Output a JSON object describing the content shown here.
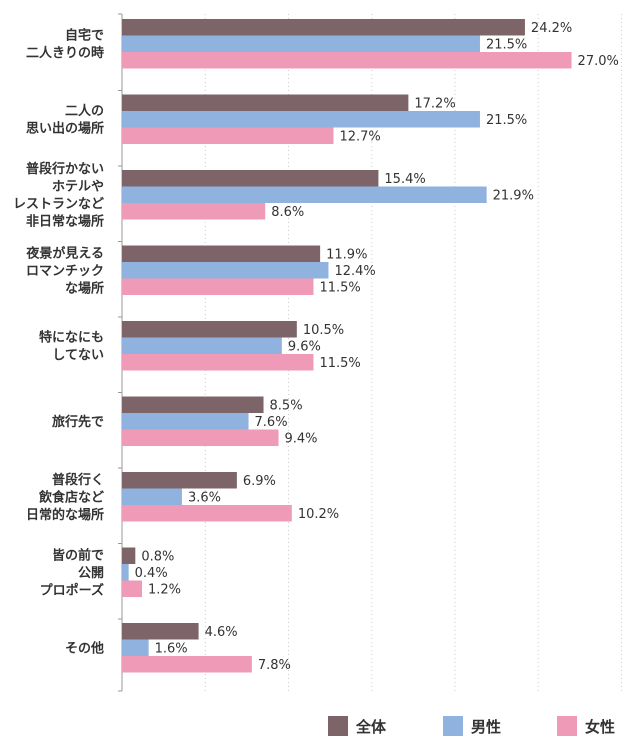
{
  "chart_data": {
    "type": "bar",
    "orientation": "horizontal",
    "categories": [
      [
        "自宅で",
        "二人きりの時"
      ],
      [
        "二人の",
        "思い出の場所"
      ],
      [
        "普段行かない",
        "ホテルや",
        "レストランなど",
        "非日常な場所"
      ],
      [
        "夜景が見える",
        "ロマンチック",
        "な場所"
      ],
      [
        "特になにも",
        "してない"
      ],
      [
        "旅行先で"
      ],
      [
        "普段行く",
        "飲食店など",
        "日常的な場所"
      ],
      [
        "皆の前で",
        "公開",
        "プロポーズ"
      ],
      [
        "その他"
      ]
    ],
    "series": [
      {
        "name": "全体",
        "color": "#7d6468",
        "values": [
          24.2,
          17.2,
          15.4,
          11.9,
          10.5,
          8.5,
          6.9,
          0.8,
          4.6
        ],
        "labels": [
          "24.2%",
          "17.2%",
          "15.4%",
          "11.9%",
          "10.5%",
          "8.5%",
          "6.9%",
          "0.8%",
          "4.6%"
        ]
      },
      {
        "name": "男性",
        "color": "#8fb3de",
        "values": [
          21.5,
          21.5,
          21.9,
          12.4,
          9.6,
          7.6,
          3.6,
          0.4,
          1.6
        ],
        "labels": [
          "21.5%",
          "21.5%",
          "21.9%",
          "12.4%",
          "9.6%",
          "7.6%",
          "3.6%",
          "0.4%",
          "1.6%"
        ]
      },
      {
        "name": "女性",
        "color": "#ef9bb7",
        "values": [
          27.0,
          12.7,
          8.6,
          11.5,
          11.5,
          9.4,
          10.2,
          1.2,
          7.8
        ],
        "labels": [
          "27.0%",
          "12.7%",
          "8.6%",
          "11.5%",
          "11.5%",
          "9.4%",
          "10.2%",
          "1.2%",
          "7.8%"
        ]
      }
    ],
    "xlim": [
      0,
      30
    ],
    "grid": true,
    "legend_position": "bottom-right"
  }
}
